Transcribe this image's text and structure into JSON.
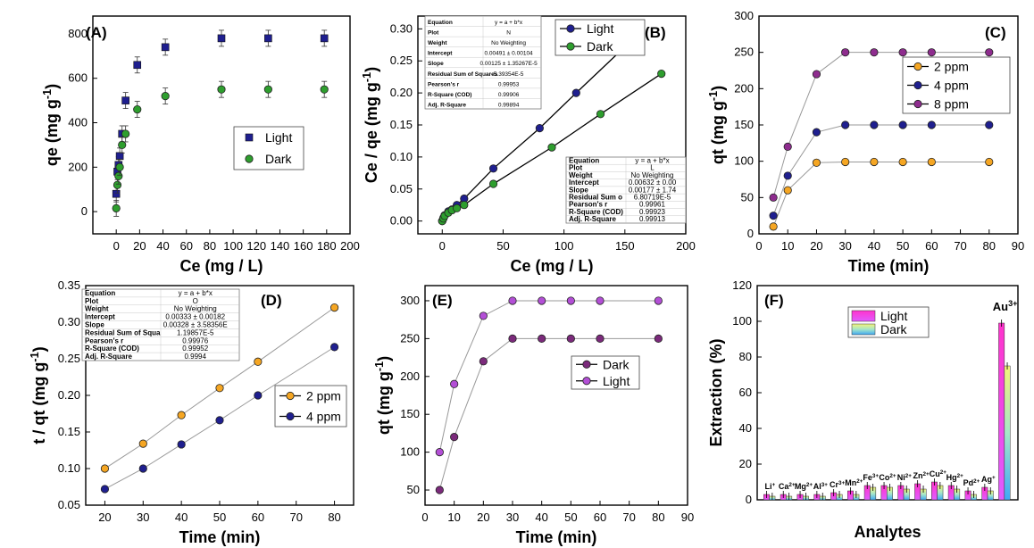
{
  "chart_data": [
    {
      "panel": "(A)",
      "type": "scatter",
      "xlabel": "Ce (mg / L)",
      "ylabel": "qe (mg g-1)",
      "xlim": [
        -20,
        200
      ],
      "ylim": [
        -100,
        880
      ],
      "xticks": [
        0,
        20,
        40,
        60,
        80,
        100,
        120,
        140,
        160,
        180,
        200
      ],
      "yticks": [
        0,
        200,
        400,
        600,
        800
      ],
      "legend": "right",
      "series": [
        {
          "name": "Light",
          "color": "#1f1f8f",
          "marker": "square",
          "x": [
            0,
            1,
            2,
            3,
            5,
            8,
            18,
            42,
            90,
            130,
            178
          ],
          "y": [
            80,
            180,
            210,
            250,
            350,
            500,
            660,
            740,
            780,
            780,
            780
          ]
        },
        {
          "name": "Dark",
          "color": "#2e9e2e",
          "marker": "circle",
          "x": [
            0,
            1,
            2,
            3,
            5,
            8,
            18,
            42,
            90,
            130,
            178
          ],
          "y": [
            15,
            120,
            160,
            200,
            300,
            350,
            460,
            520,
            550,
            550,
            550
          ]
        }
      ]
    },
    {
      "panel": "(B)",
      "type": "line",
      "xlabel": "Ce (mg / L)",
      "ylabel": "Ce / qe (mg g-1)",
      "xlim": [
        -20,
        200
      ],
      "ylim": [
        -0.02,
        0.32
      ],
      "xticks": [
        0,
        50,
        100,
        150,
        200
      ],
      "yticks": [
        0.0,
        0.05,
        0.1,
        0.15,
        0.2,
        0.25,
        0.3
      ],
      "legend": "top-right",
      "series": [
        {
          "name": "Light",
          "color": "#1f1f8f",
          "x": [
            0,
            1,
            2,
            5,
            8,
            12,
            18,
            42,
            80,
            110,
            160
          ],
          "y": [
            0.0,
            0.005,
            0.009,
            0.015,
            0.018,
            0.025,
            0.035,
            0.082,
            0.145,
            0.2,
            0.29
          ]
        },
        {
          "name": "Dark",
          "color": "#2e9e2e",
          "x": [
            0,
            1,
            2,
            5,
            8,
            12,
            18,
            42,
            90,
            130,
            180
          ],
          "y": [
            0.0,
            0.004,
            0.008,
            0.013,
            0.017,
            0.02,
            0.025,
            0.058,
            0.115,
            0.167,
            0.23
          ]
        }
      ],
      "fit_tables": [
        {
          "rows": [
            [
              "Equation",
              "y = a + b*x"
            ],
            [
              "Plot",
              "N"
            ],
            [
              "Weight",
              "No Weighting"
            ],
            [
              "Intercept",
              "0.00491 ± 0.00104"
            ],
            [
              "Slope",
              "0.00125 ± 1.35267E-5"
            ],
            [
              "Residual Sum of Squares",
              "5.39354E-5"
            ],
            [
              "Pearson's r",
              "0.99953"
            ],
            [
              "R-Square (COD)",
              "0.99906"
            ],
            [
              "Adj. R-Square",
              "0.99894"
            ]
          ]
        },
        {
          "rows": [
            [
              "Equation",
              "y = a + b*x"
            ],
            [
              "Plot",
              "L"
            ],
            [
              "Weight",
              "No Weighting"
            ],
            [
              "Intercept",
              "0.00632 ± 0.00"
            ],
            [
              "Slope",
              "0.00177 ± 1.74"
            ],
            [
              "Residual Sum o",
              "6.80719E-5"
            ],
            [
              "Pearson's r",
              "0.99961"
            ],
            [
              "R-Square (COD)",
              "0.99923"
            ],
            [
              "Adj. R-Square",
              "0.99913"
            ]
          ]
        }
      ]
    },
    {
      "panel": "(C)",
      "type": "line",
      "xlabel": "Time (min)",
      "ylabel": "qt (mg g-1)",
      "xlim": [
        0,
        90
      ],
      "ylim": [
        0,
        300
      ],
      "xticks": [
        0,
        10,
        20,
        30,
        40,
        50,
        60,
        70,
        80,
        90
      ],
      "yticks": [
        0,
        50,
        100,
        150,
        200,
        250,
        300
      ],
      "legend": "right",
      "series": [
        {
          "name": "2 ppm",
          "color": "#f5a623",
          "x": [
            5,
            10,
            20,
            30,
            40,
            50,
            60,
            80
          ],
          "y": [
            10,
            60,
            98,
            99,
            99,
            99,
            99,
            99
          ]
        },
        {
          "name": "4 ppm",
          "color": "#1f1f8f",
          "x": [
            5,
            10,
            20,
            30,
            40,
            50,
            60,
            80
          ],
          "y": [
            25,
            80,
            140,
            150,
            150,
            150,
            150,
            150
          ]
        },
        {
          "name": "8 ppm",
          "color": "#8e2c8e",
          "x": [
            5,
            10,
            20,
            30,
            40,
            50,
            60,
            80
          ],
          "y": [
            50,
            120,
            220,
            250,
            250,
            250,
            250,
            250
          ]
        }
      ]
    },
    {
      "panel": "(D)",
      "type": "line",
      "xlabel": "Time (min)",
      "ylabel": "t / qt (mg g-1)",
      "xlim": [
        15,
        85
      ],
      "ylim": [
        0.05,
        0.35
      ],
      "xticks": [
        20,
        30,
        40,
        50,
        60,
        70,
        80
      ],
      "yticks": [
        0.05,
        0.1,
        0.15,
        0.2,
        0.25,
        0.3,
        0.35
      ],
      "legend": "right",
      "series": [
        {
          "name": "2 ppm",
          "color": "#f5a623",
          "x": [
            20,
            30,
            40,
            50,
            60,
            80
          ],
          "y": [
            0.1,
            0.134,
            0.173,
            0.21,
            0.246,
            0.32
          ]
        },
        {
          "name": "4 ppm",
          "color": "#1f1f8f",
          "x": [
            20,
            30,
            40,
            50,
            60,
            80
          ],
          "y": [
            0.072,
            0.1,
            0.133,
            0.166,
            0.2,
            0.266
          ]
        }
      ],
      "fit_table": {
        "rows": [
          [
            "Equation",
            "y = a + b*x"
          ],
          [
            "Plot",
            "O"
          ],
          [
            "Weight",
            "No Weighting"
          ],
          [
            "Intercept",
            "0.00333 ± 0.00182"
          ],
          [
            "Slope",
            "0.00328 ± 3.58356E"
          ],
          [
            "Residual Sum of Squa",
            "1.19857E-5"
          ],
          [
            "Pearson's r",
            "0.99976"
          ],
          [
            "R-Square (COD)",
            "0.99952"
          ],
          [
            "Adj. R-Square",
            "0.9994"
          ]
        ]
      }
    },
    {
      "panel": "(E)",
      "type": "line",
      "xlabel": "Time (min)",
      "ylabel": "qt (mg g-1)",
      "xlim": [
        0,
        90
      ],
      "ylim": [
        30,
        320
      ],
      "xticks": [
        0,
        10,
        20,
        30,
        40,
        50,
        60,
        70,
        80,
        90
      ],
      "yticks": [
        50,
        100,
        150,
        200,
        250,
        300
      ],
      "legend": "center-right",
      "series": [
        {
          "name": "Dark",
          "color": "#7b2a7b",
          "x": [
            5,
            10,
            20,
            30,
            40,
            50,
            60,
            80
          ],
          "y": [
            50,
            120,
            220,
            250,
            250,
            250,
            250,
            250
          ]
        },
        {
          "name": "Light",
          "color": "#b34fd6",
          "x": [
            5,
            10,
            20,
            30,
            40,
            50,
            60,
            80
          ],
          "y": [
            100,
            190,
            280,
            300,
            300,
            300,
            300,
            300
          ]
        }
      ]
    },
    {
      "panel": "(F)",
      "type": "bar",
      "xlabel": "Analytes",
      "ylabel": "Extraction (%)",
      "ylim": [
        0,
        120
      ],
      "yticks": [
        0,
        20,
        40,
        60,
        80,
        100,
        120
      ],
      "legend": "top-left",
      "categories": [
        "Li+",
        "Ca2+",
        "Mg2+",
        "Al3+",
        "Cr3+",
        "Mn2+",
        "Fe3+",
        "Co2+",
        "Ni2+",
        "Zn2+",
        "Cu2+",
        "Hg2+",
        "Pd2+",
        "Ag+",
        "Au3+"
      ],
      "series": [
        {
          "name": "Light",
          "values": [
            3,
            3,
            3,
            3,
            4,
            5,
            8,
            8,
            8,
            9,
            10,
            8,
            5,
            7,
            99
          ]
        },
        {
          "name": "Dark",
          "values": [
            2,
            2,
            2,
            2,
            3,
            3,
            7,
            7,
            6,
            6,
            8,
            6,
            3,
            5,
            75
          ]
        }
      ]
    }
  ]
}
